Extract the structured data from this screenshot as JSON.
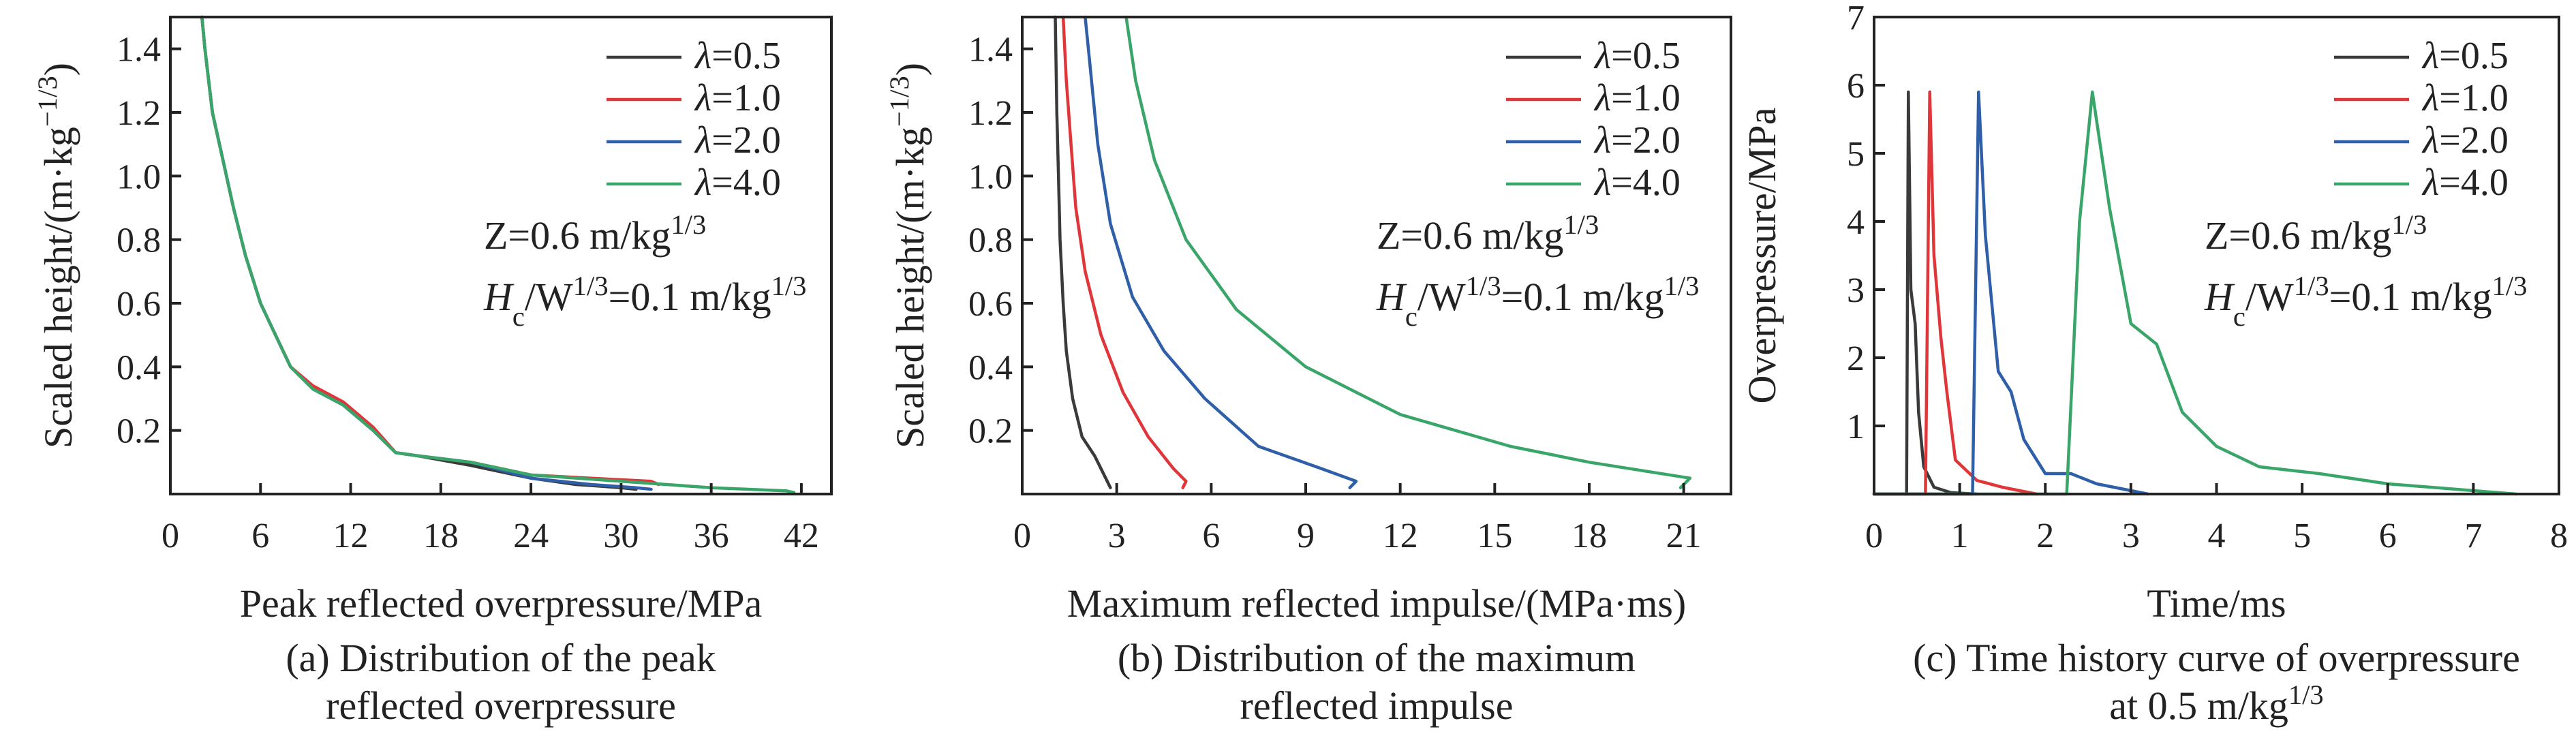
{
  "legend_entries": [
    "λ=0.5",
    "λ=1.0",
    "λ=2.0",
    "λ=4.0"
  ],
  "series_colors": [
    "#3a3a3a",
    "#e0363a",
    "#2f5fa8",
    "#3aa569"
  ],
  "chart_data": [
    {
      "type": "line",
      "panel": "a",
      "xlabel": "Peak reflected overpressure/MPa",
      "ylabel": "Scaled height/(m·kg−1/3)",
      "caption_lines": [
        "(a) Distribution of the peak",
        "reflected overpressure"
      ],
      "annotation_lines": [
        "Z=0.6 m/kg1/3",
        "Hc/W1/3=0.1 m/kg1/3"
      ],
      "xlim": [
        0,
        44
      ],
      "ylim": [
        0,
        1.5
      ],
      "xticks": [
        0,
        6,
        12,
        18,
        24,
        30,
        36,
        42
      ],
      "yticks": [
        0.2,
        0.4,
        0.6,
        0.8,
        1.0,
        1.2,
        1.4
      ],
      "legend_position": "top-right",
      "grid": false,
      "series": [
        {
          "name": "λ=0.5",
          "x": [
            2.1,
            2.3,
            2.8,
            3.5,
            4.2,
            5.0,
            6.0,
            7.0,
            8.0,
            9.5,
            11.5,
            13.5,
            15.0,
            16.5,
            20.0,
            24.0,
            27.0,
            30.0,
            31.0
          ],
          "y": [
            1.5,
            1.4,
            1.2,
            1.05,
            0.9,
            0.75,
            0.6,
            0.5,
            0.4,
            0.33,
            0.28,
            0.2,
            0.13,
            0.12,
            0.09,
            0.05,
            0.03,
            0.02,
            0.015
          ]
        },
        {
          "name": "λ=1.0",
          "x": [
            2.1,
            2.3,
            2.8,
            3.5,
            4.2,
            5.0,
            6.0,
            7.0,
            8.0,
            9.5,
            11.5,
            13.5,
            15.0,
            16.5,
            20.0,
            24.0,
            28.0,
            32.0,
            32.5
          ],
          "y": [
            1.5,
            1.4,
            1.2,
            1.05,
            0.9,
            0.75,
            0.6,
            0.5,
            0.4,
            0.34,
            0.29,
            0.21,
            0.13,
            0.12,
            0.1,
            0.06,
            0.05,
            0.04,
            0.03
          ]
        },
        {
          "name": "λ=2.0",
          "x": [
            2.1,
            2.3,
            2.8,
            3.5,
            4.2,
            5.0,
            6.0,
            7.0,
            8.0,
            9.5,
            11.5,
            13.5,
            15.0,
            16.5,
            20.0,
            24.0,
            28.0,
            31.0,
            32.0
          ],
          "y": [
            1.5,
            1.4,
            1.2,
            1.05,
            0.9,
            0.75,
            0.6,
            0.5,
            0.4,
            0.33,
            0.28,
            0.2,
            0.13,
            0.12,
            0.1,
            0.05,
            0.03,
            0.02,
            0.015
          ]
        },
        {
          "name": "λ=4.0",
          "x": [
            2.1,
            2.3,
            2.8,
            3.5,
            4.2,
            5.0,
            6.0,
            7.0,
            8.0,
            9.5,
            11.5,
            13.5,
            15.0,
            16.5,
            20.0,
            24.0,
            30.0,
            36.0,
            41.0,
            41.5
          ],
          "y": [
            1.5,
            1.4,
            1.2,
            1.05,
            0.9,
            0.75,
            0.6,
            0.5,
            0.4,
            0.33,
            0.28,
            0.2,
            0.13,
            0.12,
            0.1,
            0.06,
            0.04,
            0.02,
            0.01,
            0.005
          ]
        }
      ]
    },
    {
      "type": "line",
      "panel": "b",
      "xlabel": "Maximum reflected impulse/(MPa·ms)",
      "ylabel": "Scaled height/(m·kg−1/3)",
      "caption_lines": [
        "(b) Distribution of the maximum",
        "reflected impulse"
      ],
      "annotation_lines": [
        "Z=0.6 m/kg1/3",
        "Hc/W1/3=0.1 m/kg1/3"
      ],
      "xlim": [
        0,
        22.5
      ],
      "ylim": [
        0,
        1.5
      ],
      "xticks": [
        0,
        3,
        6,
        9,
        12,
        15,
        18,
        21
      ],
      "yticks": [
        0.2,
        0.4,
        0.6,
        0.8,
        1.0,
        1.2,
        1.4
      ],
      "legend_position": "top-right",
      "grid": false,
      "series": [
        {
          "name": "λ=0.5",
          "x": [
            1.05,
            1.1,
            1.15,
            1.2,
            1.3,
            1.4,
            1.6,
            1.9,
            2.3,
            2.6,
            2.8
          ],
          "y": [
            1.5,
            1.2,
            1.0,
            0.8,
            0.6,
            0.45,
            0.3,
            0.18,
            0.12,
            0.06,
            0.02
          ]
        },
        {
          "name": "λ=1.0",
          "x": [
            1.3,
            1.4,
            1.55,
            1.7,
            2.0,
            2.5,
            3.2,
            4.0,
            4.8,
            5.2,
            5.1
          ],
          "y": [
            1.5,
            1.3,
            1.1,
            0.9,
            0.7,
            0.5,
            0.32,
            0.18,
            0.08,
            0.04,
            0.02
          ]
        },
        {
          "name": "λ=2.0",
          "x": [
            2.0,
            2.15,
            2.4,
            2.8,
            3.5,
            4.5,
            5.8,
            7.5,
            9.5,
            10.6,
            10.4
          ],
          "y": [
            1.5,
            1.35,
            1.1,
            0.85,
            0.62,
            0.45,
            0.3,
            0.15,
            0.08,
            0.04,
            0.02
          ]
        },
        {
          "name": "λ=4.0",
          "x": [
            3.3,
            3.6,
            4.2,
            5.2,
            6.8,
            9.0,
            12.0,
            15.5,
            18.0,
            21.2,
            20.9
          ],
          "y": [
            1.5,
            1.3,
            1.05,
            0.8,
            0.58,
            0.4,
            0.25,
            0.15,
            0.1,
            0.05,
            0.02
          ]
        }
      ]
    },
    {
      "type": "line",
      "panel": "c",
      "xlabel": "Time/ms",
      "ylabel": "Overpressure/MPa",
      "caption_lines": [
        "(c) Time history curve of overpressure",
        "at 0.5 m/kg1/3"
      ],
      "annotation_lines": [
        "Z=0.6 m/kg1/3",
        "Hc/W1/3=0.1 m/kg1/3"
      ],
      "xlim": [
        0,
        8
      ],
      "ylim": [
        0,
        7
      ],
      "xticks": [
        0,
        1,
        2,
        3,
        4,
        5,
        6,
        7,
        8
      ],
      "yticks": [
        1,
        2,
        3,
        4,
        5,
        6,
        7
      ],
      "legend_position": "top-right",
      "grid": false,
      "series": [
        {
          "name": "λ=0.5",
          "x": [
            0.0,
            0.38,
            0.4,
            0.43,
            0.48,
            0.52,
            0.58,
            0.7,
            0.9,
            1.2
          ],
          "y": [
            0.0,
            0.0,
            5.9,
            3.0,
            2.5,
            1.2,
            0.4,
            0.1,
            0.02,
            0.0
          ]
        },
        {
          "name": "λ=1.0",
          "x": [
            0.0,
            0.6,
            0.65,
            0.7,
            0.78,
            0.85,
            0.95,
            1.2,
            1.5,
            1.9
          ],
          "y": [
            0.0,
            0.0,
            5.9,
            3.5,
            2.3,
            1.5,
            0.5,
            0.2,
            0.1,
            0.0
          ]
        },
        {
          "name": "λ=2.0",
          "x": [
            0.0,
            1.15,
            1.22,
            1.3,
            1.45,
            1.6,
            1.75,
            2.0,
            2.3,
            2.6,
            2.8,
            3.2
          ],
          "y": [
            0.0,
            0.0,
            5.9,
            3.8,
            1.8,
            1.5,
            0.8,
            0.3,
            0.3,
            0.15,
            0.1,
            0.0
          ]
        },
        {
          "name": "λ=4.0",
          "x": [
            0.0,
            2.25,
            2.4,
            2.55,
            2.75,
            3.0,
            3.3,
            3.6,
            4.0,
            4.5,
            5.2,
            6.0,
            7.0,
            7.5
          ],
          "y": [
            0.0,
            0.0,
            4.0,
            5.9,
            4.2,
            2.5,
            2.2,
            1.2,
            0.7,
            0.4,
            0.3,
            0.15,
            0.05,
            0.0
          ]
        }
      ]
    }
  ]
}
